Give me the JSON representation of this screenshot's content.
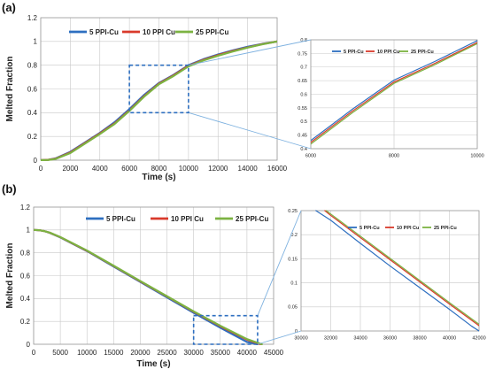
{
  "colors": {
    "s5": "#2e6fc0",
    "s10": "#d93a2b",
    "s25": "#7cb342",
    "zoom_box": "#2e6fc0",
    "connector": "#7fb2e0",
    "grid": "#c8c8c8"
  },
  "chart_data": [
    {
      "id": "a-main",
      "panel_label": "(a)",
      "type": "line",
      "xlabel": "Time (s)",
      "ylabel": "Melted Fraction",
      "xlim": [
        0,
        16000
      ],
      "ylim": [
        0,
        1.2
      ],
      "xticks": [
        "0",
        "2000",
        "4000",
        "6000",
        "8000",
        "10000",
        "12000",
        "14000",
        "16000"
      ],
      "yticks": [
        "0",
        "0.2",
        "0.4",
        "0.6",
        "0.8",
        "1",
        "1.2"
      ],
      "legend_position": "top-left",
      "grid": true,
      "series": [
        {
          "name": "5 PPI-Cu",
          "x": [
            0,
            500,
            1000,
            2000,
            3000,
            4000,
            5000,
            6000,
            7000,
            8000,
            9000,
            10000,
            11000,
            12000,
            13000,
            14000,
            15000,
            16000
          ],
          "y": [
            0,
            0.003,
            0.015,
            0.07,
            0.15,
            0.23,
            0.32,
            0.43,
            0.55,
            0.65,
            0.72,
            0.8,
            0.85,
            0.89,
            0.925,
            0.955,
            0.98,
            1.0
          ]
        },
        {
          "name": "10 PPI Cu",
          "x": [
            0,
            500,
            1000,
            2000,
            3000,
            4000,
            5000,
            6000,
            7000,
            8000,
            9000,
            10000,
            11000,
            12000,
            13000,
            14000,
            15000,
            16000
          ],
          "y": [
            0,
            0.003,
            0.012,
            0.065,
            0.145,
            0.225,
            0.31,
            0.42,
            0.54,
            0.645,
            0.715,
            0.795,
            0.845,
            0.885,
            0.92,
            0.95,
            0.978,
            1.0
          ]
        },
        {
          "name": "25 PPI-Cu",
          "x": [
            0,
            500,
            1000,
            2000,
            3000,
            4000,
            5000,
            6000,
            7000,
            8000,
            9000,
            10000,
            11000,
            12000,
            13000,
            14000,
            15000,
            16000
          ],
          "y": [
            0,
            0.002,
            0.01,
            0.06,
            0.14,
            0.22,
            0.305,
            0.415,
            0.535,
            0.64,
            0.71,
            0.79,
            0.84,
            0.88,
            0.915,
            0.948,
            0.976,
            1.0
          ]
        }
      ]
    },
    {
      "id": "a-zoom",
      "type": "line",
      "xlim": [
        6000,
        10000
      ],
      "ylim": [
        0.4,
        0.8
      ],
      "xticks": [
        "6000",
        "8000",
        "10000"
      ],
      "yticks": [
        "0.4",
        "0.45",
        "0.5",
        "0.55",
        "0.6",
        "0.65",
        "0.7",
        "0.75",
        "0.8"
      ],
      "legend_position": "top-left",
      "grid": true,
      "series": [
        {
          "name": "5 PPI-Cu",
          "x": [
            6000,
            7000,
            8000,
            9000,
            10000
          ],
          "y": [
            0.43,
            0.545,
            0.652,
            0.722,
            0.797
          ]
        },
        {
          "name": "10 PPI Cu",
          "x": [
            6000,
            7000,
            8000,
            9000,
            10000
          ],
          "y": [
            0.423,
            0.538,
            0.645,
            0.715,
            0.79
          ]
        },
        {
          "name": "25 PPI-Cu",
          "x": [
            6000,
            7000,
            8000,
            9000,
            10000
          ],
          "y": [
            0.417,
            0.532,
            0.64,
            0.71,
            0.786
          ]
        }
      ]
    },
    {
      "id": "b-main",
      "panel_label": "(b)",
      "type": "line",
      "xlabel": "Time (s)",
      "ylabel": "Melted Fraction",
      "xlim": [
        0,
        45000
      ],
      "ylim": [
        0,
        1.2
      ],
      "xticks": [
        "0",
        "5000",
        "10000",
        "15000",
        "20000",
        "25000",
        "30000",
        "35000",
        "40000",
        "45000"
      ],
      "yticks": [
        "0",
        "0.2",
        "0.4",
        "0.6",
        "0.8",
        "1",
        "1.2"
      ],
      "legend_position": "top-center",
      "grid": true,
      "series": [
        {
          "name": "5 PPI-Cu",
          "x": [
            0,
            1000,
            2000,
            3000,
            5000,
            10000,
            15000,
            20000,
            25000,
            30000,
            35000,
            40000,
            42000
          ],
          "y": [
            1.0,
            0.998,
            0.99,
            0.975,
            0.935,
            0.815,
            0.68,
            0.545,
            0.41,
            0.275,
            0.145,
            0.02,
            0.0
          ]
        },
        {
          "name": "10 PPI Cu",
          "x": [
            0,
            1000,
            2000,
            3000,
            5000,
            10000,
            15000,
            20000,
            25000,
            30000,
            35000,
            40000,
            42500
          ],
          "y": [
            1.0,
            0.998,
            0.99,
            0.976,
            0.937,
            0.818,
            0.685,
            0.55,
            0.418,
            0.285,
            0.158,
            0.04,
            0.0
          ]
        },
        {
          "name": "25 PPI-Cu",
          "x": [
            0,
            1000,
            2000,
            3000,
            5000,
            10000,
            15000,
            20000,
            25000,
            30000,
            35000,
            40000,
            42800
          ],
          "y": [
            1.0,
            0.998,
            0.99,
            0.977,
            0.938,
            0.82,
            0.687,
            0.553,
            0.42,
            0.288,
            0.162,
            0.045,
            0.0
          ]
        }
      ]
    },
    {
      "id": "b-zoom",
      "type": "line",
      "xlim": [
        30000,
        42000
      ],
      "ylim": [
        0,
        0.25
      ],
      "xticks": [
        "30000",
        "32000",
        "34000",
        "36000",
        "38000",
        "40000",
        "42000"
      ],
      "yticks": [
        "0",
        "0.05",
        "0.1",
        "0.15",
        "0.2",
        "0.25"
      ],
      "legend_position": "top-right",
      "grid": true,
      "series": [
        {
          "name": "5 PPI-Cu",
          "x": [
            31000,
            32000,
            34000,
            36000,
            38000,
            40000,
            41500,
            42000
          ],
          "y": [
            0.25,
            0.23,
            0.182,
            0.135,
            0.09,
            0.045,
            0.01,
            0.0
          ]
        },
        {
          "name": "10 PPI Cu",
          "x": [
            31600,
            32000,
            34000,
            36000,
            38000,
            40000,
            42000
          ],
          "y": [
            0.25,
            0.24,
            0.194,
            0.148,
            0.102,
            0.056,
            0.011
          ]
        },
        {
          "name": "25 PPI-Cu",
          "x": [
            31700,
            32000,
            34000,
            36000,
            38000,
            40000,
            42000
          ],
          "y": [
            0.25,
            0.243,
            0.197,
            0.151,
            0.105,
            0.059,
            0.014
          ]
        }
      ]
    }
  ]
}
